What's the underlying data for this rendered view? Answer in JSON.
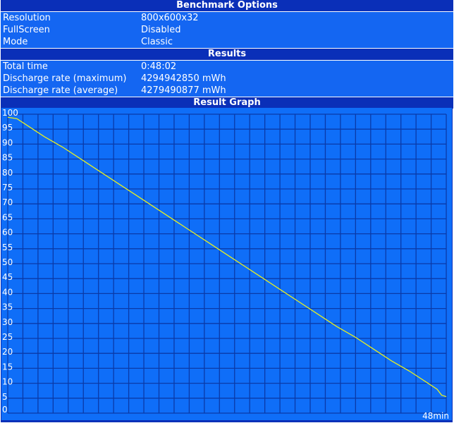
{
  "benchmark_options": {
    "title": "Benchmark Options",
    "rows": [
      {
        "label": "Resolution",
        "value": "800x600x32"
      },
      {
        "label": "FullScreen",
        "value": "Disabled"
      },
      {
        "label": "Mode",
        "value": "Classic"
      }
    ]
  },
  "results": {
    "title": "Results",
    "rows": [
      {
        "label": "Total time",
        "value": "0:48:02"
      },
      {
        "label": "Discharge rate (maximum)",
        "value": "4294942850 mWh"
      },
      {
        "label": "Discharge rate (average)",
        "value": "4279490877 mWh"
      }
    ]
  },
  "graph_title": "Result Graph",
  "chart_data": {
    "type": "line",
    "title": "",
    "xlabel": "48min",
    "ylabel": "",
    "ylim": [
      0,
      100
    ],
    "xlim": [
      0,
      48
    ],
    "yticks": [
      0,
      5,
      10,
      15,
      20,
      25,
      30,
      35,
      40,
      45,
      50,
      55,
      60,
      65,
      70,
      75,
      80,
      85,
      90,
      95,
      100
    ],
    "grid": true,
    "colors": {
      "background": "#0f6ef8",
      "grid": "#0a3aa8",
      "line": "#e8f020"
    },
    "x": [
      0,
      1,
      2,
      4,
      6,
      8,
      10,
      12,
      14,
      16,
      18,
      20,
      22,
      24,
      26,
      28,
      30,
      32,
      34,
      36,
      38,
      40,
      42,
      44,
      46,
      47,
      47.5,
      48
    ],
    "y": [
      99,
      98.5,
      96.5,
      92.5,
      89,
      85,
      81,
      77,
      73,
      69,
      65,
      61,
      57,
      53,
      49,
      45,
      41,
      37,
      33,
      29,
      25.5,
      21.5,
      17.5,
      14,
      10,
      8,
      6,
      5.5
    ]
  }
}
